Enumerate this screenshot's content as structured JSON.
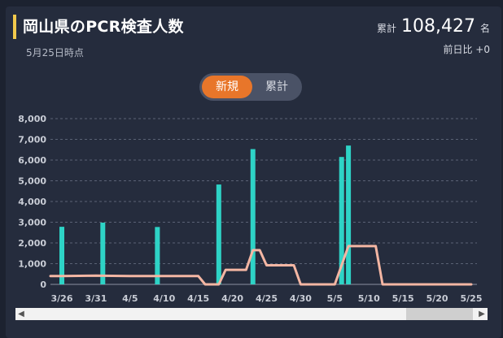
{
  "header": {
    "title": "岡山県のPCR検査人数",
    "date": "5月25日時点",
    "total_label": "累計",
    "total_value": "108,427",
    "total_unit": "名",
    "diff_text": "前日比 +0"
  },
  "toggle": {
    "options": [
      "新規",
      "累計"
    ],
    "selected": "新規"
  },
  "colors": {
    "bar": "#2ed3c6",
    "line": "#f4b6a3",
    "accent": "#f2c94c",
    "active_toggle": "#e8762a"
  },
  "chart_data": {
    "type": "bar",
    "title": "",
    "xlabel": "",
    "ylabel": "",
    "ylim": [
      0,
      8000
    ],
    "yticks": [
      "0",
      "1,000",
      "2,000",
      "3,000",
      "4,000",
      "5,000",
      "6,000",
      "7,000",
      "8,000"
    ],
    "x_tick_labels": [
      "3/26",
      "3/31",
      "4/5",
      "4/10",
      "4/15",
      "4/20",
      "4/25",
      "4/30",
      "5/5",
      "5/10",
      "5/15",
      "5/20",
      "5/25"
    ],
    "x_tick_days": [
      0,
      5,
      10,
      15,
      20,
      25,
      30,
      35,
      40,
      45,
      50,
      55,
      60
    ],
    "grid": true,
    "legend": "none",
    "series": [
      {
        "type": "bar",
        "points": [
          {
            "x": "3/26",
            "y": 2780
          },
          {
            "x": "4/1",
            "y": 2980
          },
          {
            "x": "4/9",
            "y": 2770
          },
          {
            "x": "4/18",
            "y": 4820
          },
          {
            "x": "4/23",
            "y": 6530
          },
          {
            "x": "5/6",
            "y": 6150
          },
          {
            "x": "5/7",
            "y": 6700
          }
        ]
      },
      {
        "type": "line",
        "points": [
          {
            "x": "3/26",
            "y": 400
          },
          {
            "x": "3/31",
            "y": 420
          },
          {
            "x": "4/5",
            "y": 400
          },
          {
            "x": "4/10",
            "y": 400
          },
          {
            "x": "4/15",
            "y": 400
          },
          {
            "x": "4/16",
            "y": 0
          },
          {
            "x": "4/18",
            "y": 0
          },
          {
            "x": "4/19",
            "y": 700
          },
          {
            "x": "4/22",
            "y": 700
          },
          {
            "x": "4/23",
            "y": 1650
          },
          {
            "x": "4/24",
            "y": 1650
          },
          {
            "x": "4/25",
            "y": 920
          },
          {
            "x": "4/29",
            "y": 920
          },
          {
            "x": "4/30",
            "y": 0
          },
          {
            "x": "5/5",
            "y": 0
          },
          {
            "x": "5/7",
            "y": 1850
          },
          {
            "x": "5/11",
            "y": 1850
          },
          {
            "x": "5/12",
            "y": 0
          },
          {
            "x": "5/25",
            "y": 0
          }
        ]
      }
    ]
  }
}
